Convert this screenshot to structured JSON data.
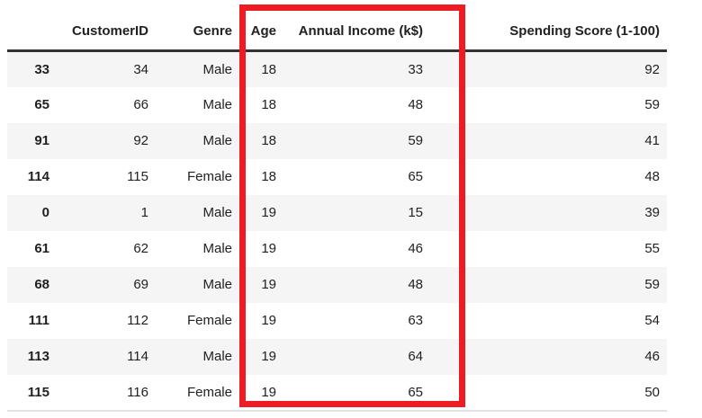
{
  "chart_data": {
    "type": "table",
    "columns": [
      "",
      "CustomerID",
      "Genre",
      "Age",
      "Annual Income (k$)",
      "Spending Score (1-100)"
    ],
    "rows": [
      [
        "33",
        "34",
        "Male",
        "18",
        "33",
        "92"
      ],
      [
        "65",
        "66",
        "Male",
        "18",
        "48",
        "59"
      ],
      [
        "91",
        "92",
        "Male",
        "18",
        "59",
        "41"
      ],
      [
        "114",
        "115",
        "Female",
        "18",
        "65",
        "48"
      ],
      [
        "0",
        "1",
        "Male",
        "19",
        "15",
        "39"
      ],
      [
        "61",
        "62",
        "Male",
        "19",
        "46",
        "55"
      ],
      [
        "68",
        "69",
        "Male",
        "19",
        "48",
        "59"
      ],
      [
        "111",
        "112",
        "Female",
        "19",
        "63",
        "54"
      ],
      [
        "113",
        "114",
        "Male",
        "19",
        "64",
        "46"
      ],
      [
        "115",
        "116",
        "Female",
        "19",
        "65",
        "50"
      ]
    ],
    "layout": {
      "striped_rows": true,
      "stripe_color": "#f5f5f6",
      "header_rule_color": "#323232",
      "bottom_rule_color": "#e2e2e2",
      "text_color": "#212121"
    }
  },
  "annotation": {
    "highlighted_columns": [
      "Age",
      "Annual Income (k$)"
    ],
    "highlight_color": "#ed1c24"
  }
}
